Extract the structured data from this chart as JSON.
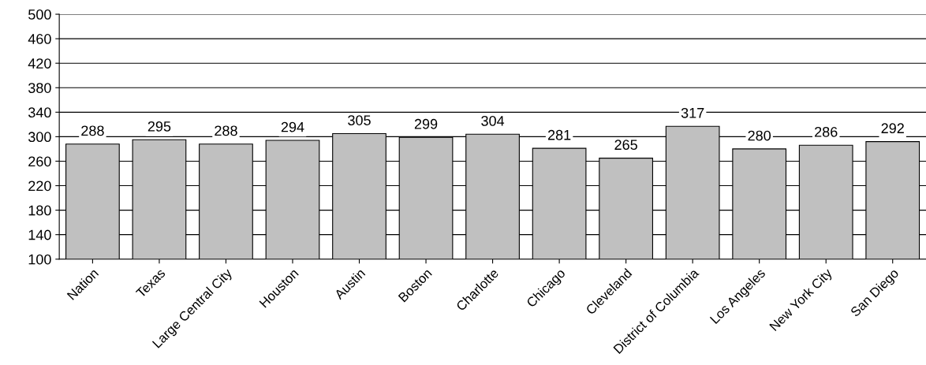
{
  "chart_data": {
    "type": "bar",
    "categories": [
      "Nation",
      "Texas",
      "Large Central City",
      "Houston",
      "Austin",
      "Boston",
      "Charlotte",
      "Chicago",
      "Cleveland",
      "District of Columbia",
      "Los Angeles",
      "New York City",
      "San Diego"
    ],
    "values": [
      288,
      295,
      288,
      294,
      305,
      299,
      304,
      281,
      265,
      317,
      280,
      286,
      292
    ],
    "color": "#c0c0c0",
    "ylim": [
      100,
      500
    ],
    "yticks": [
      100,
      140,
      180,
      220,
      260,
      300,
      340,
      380,
      420,
      460,
      500
    ],
    "grid": "y",
    "data_labels": true
  }
}
